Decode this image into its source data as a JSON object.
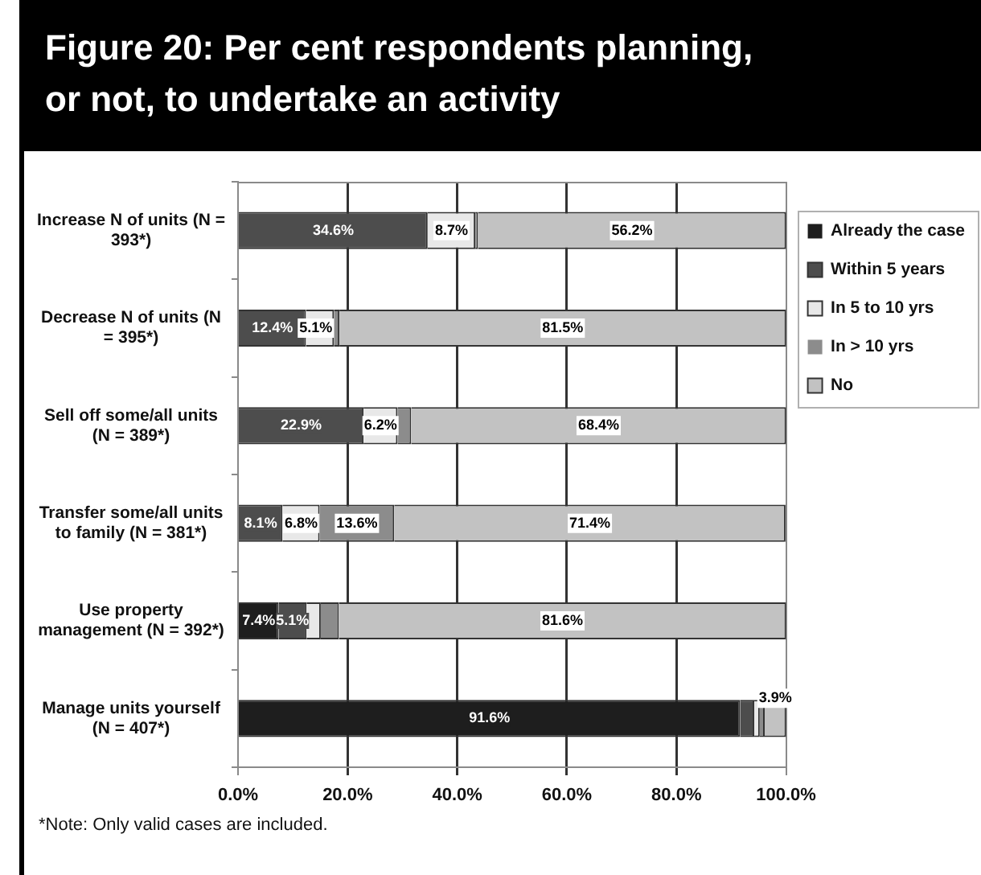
{
  "chart_data": {
    "type": "bar",
    "orientation": "horizontal",
    "stacked": true,
    "title": "Figure 20: Per cent respondents planning, or not, to undertake an activity",
    "categories": [
      "Increase N of units (N =\n393*)",
      "Decrease N of units (N\n= 395*)",
      "Sell off some/all units\n(N = 389*)",
      "Transfer some/all units\nto family (N = 381*)",
      "Use property\nmanagement (N = 392*)",
      "Manage units yourself\n(N = 407*)"
    ],
    "series": [
      {
        "name": "Already the case",
        "color": "#1e1e1e",
        "values": [
          0,
          0,
          0,
          0,
          7.4,
          91.6
        ],
        "value_labels": [
          null,
          null,
          null,
          null,
          "7.4%",
          "91.6%"
        ]
      },
      {
        "name": "Within 5 years",
        "color": "#4d4d4d",
        "values": [
          34.6,
          12.4,
          22.9,
          8.1,
          5.1,
          2.6
        ],
        "value_labels": [
          "34.6%",
          "12.4%",
          "22.9%",
          "8.1%",
          "5.1%",
          null
        ]
      },
      {
        "name": "In 5 to 10 yrs",
        "color": "#e8e8e8",
        "values": [
          8.7,
          5.1,
          6.2,
          6.8,
          2.6,
          1.0
        ],
        "value_labels": [
          "8.7%",
          "5.1%",
          "6.2%",
          "6.8%",
          null,
          null
        ]
      },
      {
        "name": "In > 10 yrs",
        "color": "#8c8c8c",
        "values": [
          0.5,
          1.0,
          2.5,
          13.6,
          3.3,
          0.9
        ],
        "value_labels": [
          null,
          null,
          null,
          "13.6%",
          null,
          null
        ]
      },
      {
        "name": "No",
        "color": "#c2c2c2",
        "values": [
          56.2,
          81.5,
          68.4,
          71.4,
          81.6,
          3.9
        ],
        "value_labels": [
          "56.2%",
          "81.5%",
          "68.4%",
          "71.4%",
          "81.6%",
          "3.9%"
        ]
      }
    ],
    "xlim": [
      0,
      100
    ],
    "xticks": [
      {
        "value": 0,
        "label": "0.0%"
      },
      {
        "value": 20,
        "label": "20.0%"
      },
      {
        "value": 40,
        "label": "40.0%"
      },
      {
        "value": 60,
        "label": "60.0%"
      },
      {
        "value": 80,
        "label": "80.0%"
      },
      {
        "value": 100,
        "label": "100.0%"
      }
    ],
    "grid": "x",
    "legend": "right",
    "annotations": [
      "*Note: Only valid cases are included."
    ]
  }
}
